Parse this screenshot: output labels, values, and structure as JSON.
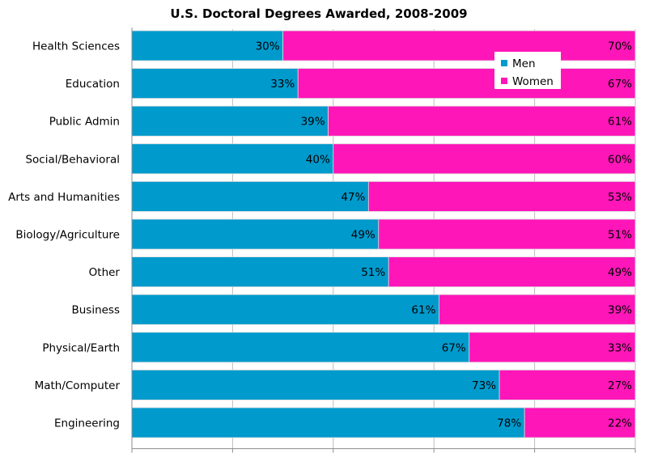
{
  "chart_data": {
    "type": "bar",
    "orientation": "horizontal",
    "stacked": "percent",
    "title": "U.S. Doctoral Degrees Awarded, 2008-2009",
    "xlabel": "",
    "ylabel": "",
    "xlim": [
      0,
      100
    ],
    "grid": true,
    "legend_position": "top-right",
    "categories": [
      "Health Sciences",
      "Education",
      "Public Admin",
      "Social/Behavioral",
      "Arts and Humanities",
      "Biology/Agriculture",
      "Other",
      "Business",
      "Physical/Earth",
      "Math/Computer",
      "Engineering"
    ],
    "series": [
      {
        "name": "Men",
        "color": "#009ACD",
        "values": [
          30,
          33,
          39,
          40,
          47,
          49,
          51,
          61,
          67,
          73,
          78
        ]
      },
      {
        "name": "Women",
        "color": "#FF16B9",
        "values": [
          70,
          67,
          61,
          60,
          53,
          51,
          49,
          39,
          33,
          27,
          22
        ]
      }
    ]
  }
}
